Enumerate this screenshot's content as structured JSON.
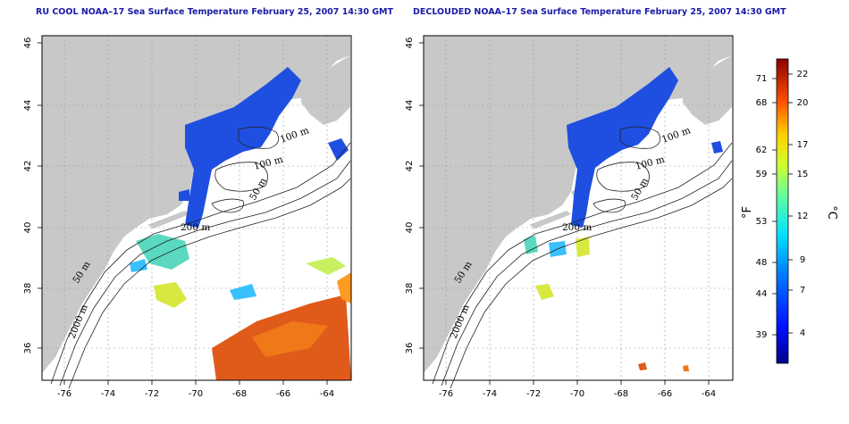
{
  "panels": [
    {
      "title": "RU COOL NOAA–17 Sea Surface Temperature February 25, 2007 14:30 GMT",
      "contour_labels": [
        "100 m",
        "100 m",
        "50 m",
        "200 m",
        "50 m",
        "2000 m"
      ]
    },
    {
      "title": "DECLOUDED NOAA–17 Sea Surface Temperature February 25, 2007 14:30 GMT",
      "contour_labels": [
        "100 m",
        "100 m",
        "50 m",
        "200 m",
        "50 m",
        "2000 m"
      ]
    }
  ],
  "axes": {
    "x_ticks": [
      "-76",
      "-74",
      "-72",
      "-70",
      "-68",
      "-66",
      "-64"
    ],
    "y_ticks": [
      "36",
      "38",
      "40",
      "42",
      "44",
      "46"
    ]
  },
  "colorbar": {
    "fahrenheit_unit": "°F",
    "celsius_unit": "°C",
    "fahrenheit_ticks": [
      "71",
      "68",
      "62",
      "59",
      "53",
      "48",
      "44",
      "39"
    ],
    "celsius_ticks": [
      "22",
      "20",
      "17",
      "15",
      "12",
      "9",
      "7",
      "4"
    ]
  },
  "colors": {
    "land": "#c8c8c8",
    "ocean": "#ffffff",
    "cold_water": "#1f4fe0",
    "warm_water": "#e05a1a",
    "title_blue": "#1a1aa8"
  }
}
